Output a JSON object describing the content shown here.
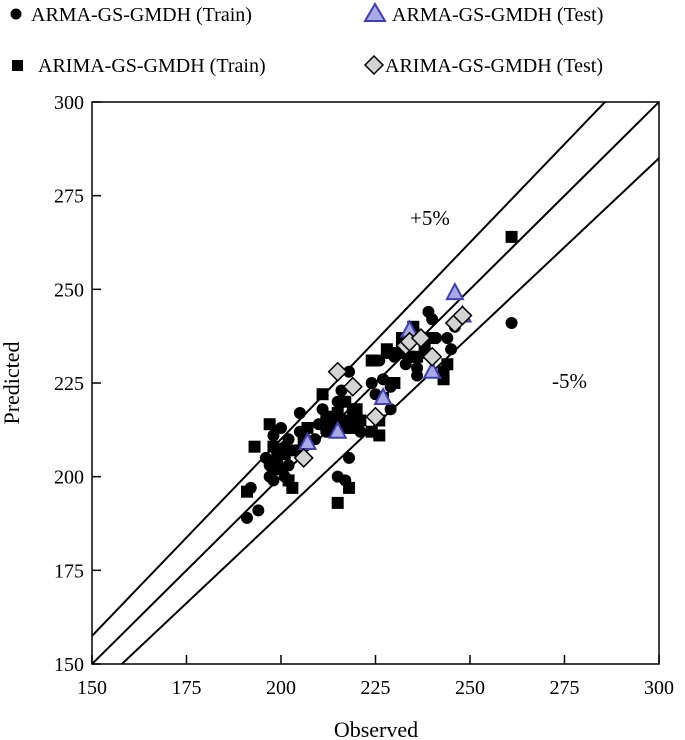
{
  "chart_data": {
    "type": "scatter",
    "xlabel": "Observed",
    "ylabel": "Predicted",
    "xlim": [
      150,
      300
    ],
    "ylim": [
      150,
      300
    ],
    "xticks": [
      "150",
      "175",
      "200",
      "225",
      "250",
      "275",
      "300"
    ],
    "yticks": [
      "150",
      "175",
      "200",
      "225",
      "250",
      "275",
      "300"
    ],
    "grid": false,
    "legend_position": "top",
    "reference_lines": [
      {
        "label": "+5%",
        "factor": 1.05
      },
      {
        "label": "",
        "factor": 1.0
      },
      {
        "label": "-5%",
        "factor": 0.95
      }
    ],
    "series": [
      {
        "name": "ARMA-GS-GMDH (Train)",
        "marker": "circle",
        "color": "#000000",
        "points": [
          [
            191,
            189
          ],
          [
            192,
            197
          ],
          [
            194,
            191
          ],
          [
            196,
            205
          ],
          [
            197,
            200
          ],
          [
            197,
            203
          ],
          [
            198,
            211
          ],
          [
            198,
            199
          ],
          [
            199,
            207
          ],
          [
            199,
            202
          ],
          [
            200,
            206
          ],
          [
            200,
            213
          ],
          [
            201,
            200
          ],
          [
            201,
            208
          ],
          [
            202,
            203
          ],
          [
            202,
            210
          ],
          [
            203,
            207
          ],
          [
            205,
            217
          ],
          [
            205,
            212
          ],
          [
            207,
            213
          ],
          [
            209,
            210
          ],
          [
            210,
            214
          ],
          [
            211,
            218
          ],
          [
            212,
            212
          ],
          [
            213,
            215
          ],
          [
            214,
            216
          ],
          [
            215,
            220
          ],
          [
            215,
            200
          ],
          [
            216,
            213
          ],
          [
            216,
            223
          ],
          [
            217,
            215
          ],
          [
            217,
            199
          ],
          [
            218,
            205
          ],
          [
            218,
            228
          ],
          [
            219,
            218
          ],
          [
            220,
            216
          ],
          [
            220,
            213
          ],
          [
            221,
            212
          ],
          [
            224,
            225
          ],
          [
            225,
            222
          ],
          [
            226,
            231
          ],
          [
            227,
            226
          ],
          [
            228,
            233
          ],
          [
            229,
            224
          ],
          [
            229,
            218
          ],
          [
            230,
            232
          ],
          [
            232,
            235
          ],
          [
            233,
            230
          ],
          [
            235,
            232
          ],
          [
            236,
            229
          ],
          [
            236,
            227
          ],
          [
            238,
            233
          ],
          [
            239,
            244
          ],
          [
            240,
            242
          ],
          [
            241,
            237
          ],
          [
            244,
            237
          ],
          [
            245,
            234
          ],
          [
            246,
            240
          ],
          [
            261,
            241
          ]
        ]
      },
      {
        "name": "ARIMA-GS-GMDH (Train)",
        "marker": "square",
        "color": "#000000",
        "points": [
          [
            191,
            196
          ],
          [
            193,
            208
          ],
          [
            197,
            214
          ],
          [
            198,
            208
          ],
          [
            199,
            205
          ],
          [
            200,
            202
          ],
          [
            201,
            206
          ],
          [
            202,
            199
          ],
          [
            203,
            197
          ],
          [
            205,
            207
          ],
          [
            206,
            210
          ],
          [
            207,
            213
          ],
          [
            211,
            222
          ],
          [
            212,
            216
          ],
          [
            212,
            213
          ],
          [
            213,
            214
          ],
          [
            214,
            215
          ],
          [
            215,
            193
          ],
          [
            215,
            217
          ],
          [
            216,
            214
          ],
          [
            217,
            220
          ],
          [
            218,
            213
          ],
          [
            218,
            197
          ],
          [
            219,
            216
          ],
          [
            220,
            218
          ],
          [
            221,
            215
          ],
          [
            224,
            231
          ],
          [
            224,
            212
          ],
          [
            226,
            215
          ],
          [
            226,
            211
          ],
          [
            227,
            221
          ],
          [
            228,
            234
          ],
          [
            230,
            225
          ],
          [
            231,
            233
          ],
          [
            232,
            237
          ],
          [
            234,
            232
          ],
          [
            235,
            240
          ],
          [
            235,
            238
          ],
          [
            236,
            232
          ],
          [
            238,
            234
          ],
          [
            240,
            237
          ],
          [
            243,
            226
          ],
          [
            243,
            228
          ],
          [
            244,
            230
          ],
          [
            261,
            264
          ]
        ]
      },
      {
        "name": "ARMA-GS-GMDH (Test)",
        "marker": "triangle",
        "color": "#a9a9e6",
        "stroke": "#3f3fb2",
        "points": [
          [
            207,
            209
          ],
          [
            215,
            212
          ],
          [
            227,
            221
          ],
          [
            234,
            239
          ],
          [
            240,
            228
          ],
          [
            246,
            249
          ],
          [
            248,
            243
          ]
        ]
      },
      {
        "name": "ARIMA-GS-GMDH (Test)",
        "marker": "diamond",
        "color": "#d3d3d3",
        "stroke": "#000000",
        "points": [
          [
            206,
            205
          ],
          [
            215,
            228
          ],
          [
            219,
            224
          ],
          [
            225,
            216
          ],
          [
            233,
            235
          ],
          [
            234,
            236
          ],
          [
            237,
            237
          ],
          [
            240,
            232
          ],
          [
            246,
            241
          ],
          [
            248,
            243
          ]
        ]
      }
    ]
  }
}
